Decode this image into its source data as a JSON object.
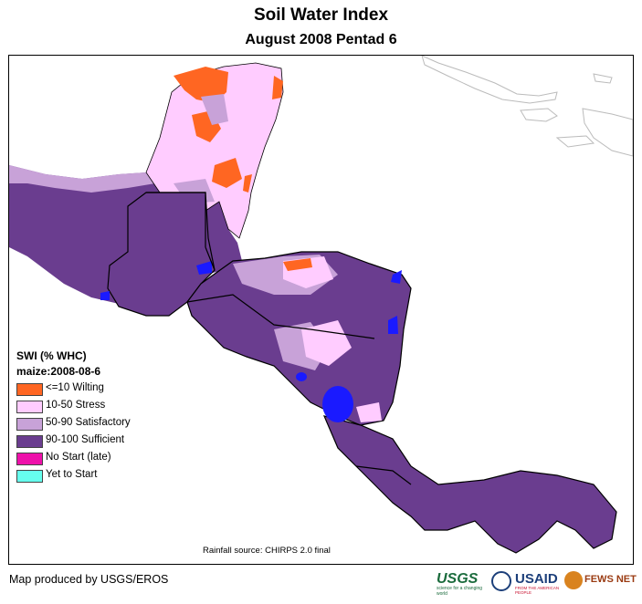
{
  "title": "Soil Water Index",
  "subtitle": "August 2008 Pentad 6",
  "legend": {
    "heading": "SWI (% WHC)",
    "crop": "maize:2008-08-6",
    "items": [
      {
        "label": "<=10 Wilting",
        "color": "#ff6622"
      },
      {
        "label": "10-50 Stress",
        "color": "#ffccff"
      },
      {
        "label": "50-90 Satisfactory",
        "color": "#c8a2d8"
      },
      {
        "label": "90-100 Sufficient",
        "color": "#6a3d8f"
      },
      {
        "label": "No Start (late)",
        "color": "#ee11aa"
      },
      {
        "label": "Yet to Start",
        "color": "#66ffee"
      }
    ]
  },
  "source": "Rainfall source: CHIRPS 2.0 final",
  "credit": "Map produced by USGS/EROS",
  "logos": {
    "usgs": "USGS",
    "usgs_tagline": "science for a changing world",
    "usaid": "USAID",
    "usaid_tagline": "FROM THE AMERICAN PEOPLE",
    "fewsnet": "FEWS NET"
  },
  "colors": {
    "water": "#1a1aff",
    "border": "#000000",
    "admin": "#777777"
  }
}
